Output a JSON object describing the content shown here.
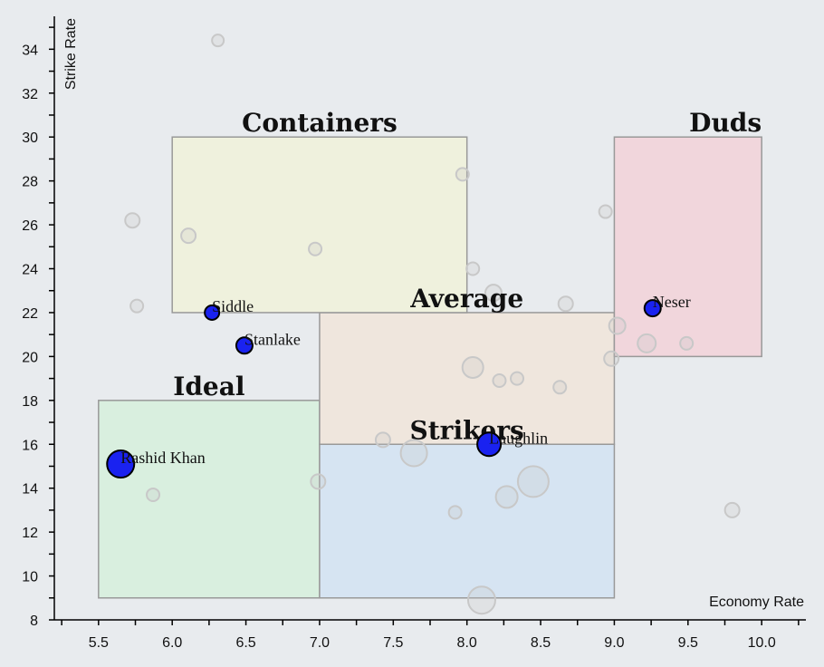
{
  "chart_data": {
    "type": "scatter",
    "xlabel": "Economy Rate",
    "ylabel": "Strike Rate",
    "xlim": [
      5.2,
      10.3
    ],
    "ylim": [
      8,
      35.5
    ],
    "x_ticks": [
      5.5,
      6.0,
      6.5,
      7.0,
      7.5,
      8.0,
      8.5,
      9.0,
      9.5,
      10.0
    ],
    "x_tick_labels": [
      "5.5",
      "6.0",
      "6.5",
      "7.0",
      "7.5",
      "8.0",
      "8.5",
      "9.0",
      "9.5",
      "10.0"
    ],
    "y_ticks": [
      8,
      10,
      12,
      14,
      16,
      18,
      20,
      22,
      24,
      26,
      28,
      30,
      32,
      34
    ],
    "y_tick_labels": [
      "8",
      "10",
      "12",
      "14",
      "16",
      "18",
      "20",
      "22",
      "24",
      "26",
      "28",
      "30",
      "32",
      "34"
    ],
    "zones": [
      {
        "label": "Ideal",
        "x": [
          5.5,
          7.0
        ],
        "y": [
          9,
          18
        ],
        "fill": "#d9efdf"
      },
      {
        "label": "Strikers",
        "x": [
          7.0,
          9.0
        ],
        "y": [
          9,
          16
        ],
        "fill": "#d6e4f2"
      },
      {
        "label": "Average",
        "x": [
          7.0,
          9.0
        ],
        "y": [
          16,
          22
        ],
        "fill": "#efe6dd"
      },
      {
        "label": "Containers",
        "x": [
          6.0,
          8.0
        ],
        "y": [
          22,
          30
        ],
        "fill": "#eff1dd"
      },
      {
        "label": "Duds",
        "x": [
          9.0,
          10.0
        ],
        "y": [
          20,
          30
        ],
        "fill": "#f1d6dc"
      }
    ],
    "highlighted": [
      {
        "name": "Rashid Khan",
        "x": 5.65,
        "y": 15.1,
        "size": 3.0
      },
      {
        "name": "Siddle",
        "x": 6.27,
        "y": 22.0,
        "size": 1.6
      },
      {
        "name": "Stanlake",
        "x": 6.49,
        "y": 20.5,
        "size": 1.8
      },
      {
        "name": "Laughlin",
        "x": 8.15,
        "y": 16.0,
        "size": 2.6
      },
      {
        "name": "Neser",
        "x": 9.26,
        "y": 22.2,
        "size": 1.8
      }
    ],
    "background_points": [
      {
        "x": 6.31,
        "y": 34.4,
        "size": 1.3
      },
      {
        "x": 5.73,
        "y": 26.2,
        "size": 1.6
      },
      {
        "x": 5.76,
        "y": 22.3,
        "size": 1.4
      },
      {
        "x": 6.11,
        "y": 25.5,
        "size": 1.6
      },
      {
        "x": 6.97,
        "y": 24.9,
        "size": 1.4
      },
      {
        "x": 7.97,
        "y": 28.3,
        "size": 1.4
      },
      {
        "x": 8.04,
        "y": 24.0,
        "size": 1.4
      },
      {
        "x": 8.18,
        "y": 22.9,
        "size": 1.8
      },
      {
        "x": 8.67,
        "y": 22.4,
        "size": 1.6
      },
      {
        "x": 8.94,
        "y": 26.6,
        "size": 1.4
      },
      {
        "x": 9.02,
        "y": 21.4,
        "size": 1.8
      },
      {
        "x": 9.22,
        "y": 20.6,
        "size": 2.0
      },
      {
        "x": 9.49,
        "y": 20.6,
        "size": 1.4
      },
      {
        "x": 8.98,
        "y": 19.9,
        "size": 1.6
      },
      {
        "x": 8.04,
        "y": 19.5,
        "size": 2.3
      },
      {
        "x": 8.22,
        "y": 18.9,
        "size": 1.4
      },
      {
        "x": 8.34,
        "y": 19.0,
        "size": 1.4
      },
      {
        "x": 8.63,
        "y": 18.6,
        "size": 1.4
      },
      {
        "x": 7.43,
        "y": 16.2,
        "size": 1.6
      },
      {
        "x": 7.64,
        "y": 15.6,
        "size": 2.9
      },
      {
        "x": 8.27,
        "y": 13.6,
        "size": 2.4
      },
      {
        "x": 8.45,
        "y": 14.3,
        "size": 3.4
      },
      {
        "x": 7.92,
        "y": 12.9,
        "size": 1.4
      },
      {
        "x": 6.99,
        "y": 14.3,
        "size": 1.6
      },
      {
        "x": 5.87,
        "y": 13.7,
        "size": 1.4
      },
      {
        "x": 8.1,
        "y": 8.9,
        "size": 3.0
      },
      {
        "x": 9.8,
        "y": 13.0,
        "size": 1.6
      }
    ]
  }
}
